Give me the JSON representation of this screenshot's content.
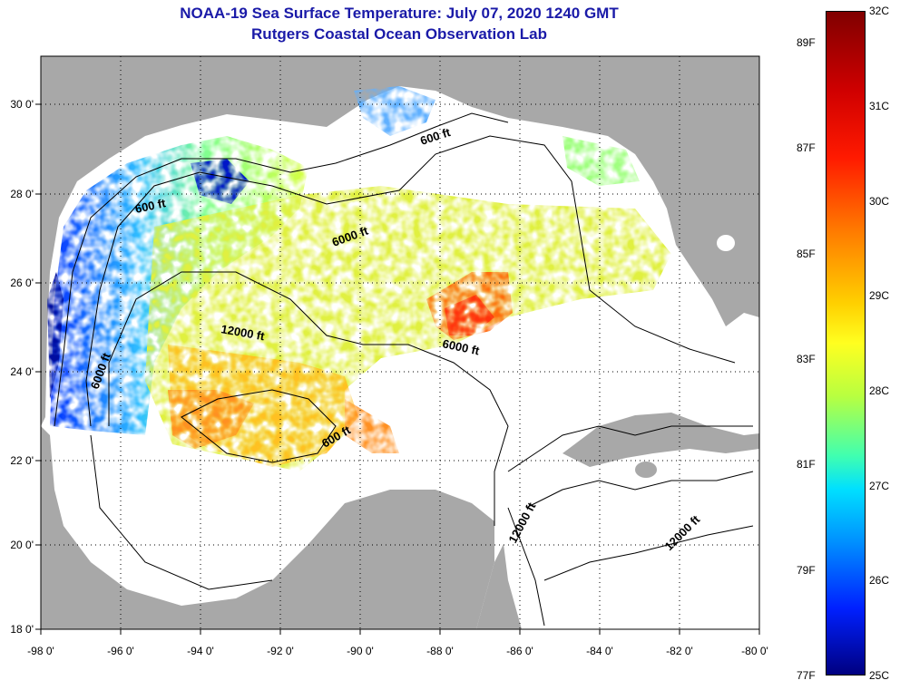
{
  "title": {
    "line1": "NOAA-19 Sea Surface Temperature:  July 07, 2020 1240 GMT",
    "line2": "Rutgers Coastal Ocean Observation Lab"
  },
  "axes": {
    "lon_labels": [
      "-98 0'",
      "-96 0'",
      "-94 0'",
      "-92 0'",
      "-90 0'",
      "-88 0'",
      "-86 0'",
      "-84 0'",
      "-82 0'",
      "-80 0'"
    ],
    "lat_labels": [
      "30 0'",
      "28 0'",
      "26 0'",
      "24 0'",
      "22 0'",
      "20 0'",
      "18 0'"
    ],
    "lon_range": [
      -98,
      -80
    ],
    "lat_range": [
      18,
      31
    ]
  },
  "contour_labels": [
    {
      "text": "600 ft",
      "id": "c600-north"
    },
    {
      "text": "600 ft",
      "id": "c600-texas"
    },
    {
      "text": "6000 ft",
      "id": "c6000-central"
    },
    {
      "text": "12000 ft",
      "id": "c12000-gulf"
    },
    {
      "text": "6000 ft",
      "id": "c6000-east"
    },
    {
      "text": "6000 ft",
      "id": "c6000-west"
    },
    {
      "text": "600 ft",
      "id": "c600-yucatan"
    },
    {
      "text": "12000 ft",
      "id": "c12000-yucatan"
    },
    {
      "text": "12000 ft",
      "id": "c12000-caribbean"
    }
  ],
  "colorbar": {
    "celsius_labels": [
      "32C",
      "31C",
      "30C",
      "29C",
      "28C",
      "27C",
      "26C",
      "25C"
    ],
    "fahrenheit_labels": [
      "89F",
      "87F",
      "85F",
      "83F",
      "81F",
      "79F",
      "77F"
    ],
    "celsius_range": [
      25,
      32
    ]
  },
  "colors": {
    "land": "#a8a8a8",
    "title": "#1a1aa8",
    "cold": "#0000a0",
    "warm": "#ff3000"
  }
}
